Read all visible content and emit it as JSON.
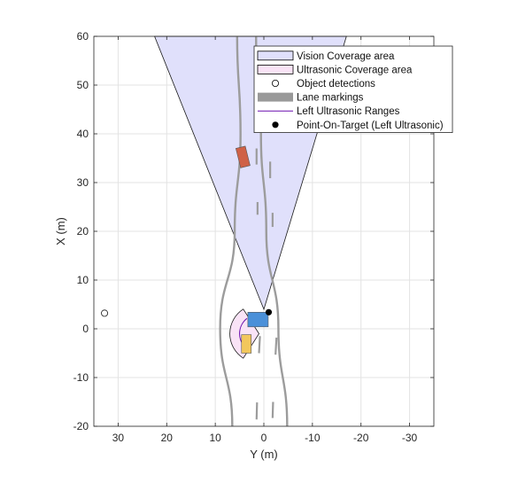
{
  "chart_data": {
    "type": "scatter",
    "title": "",
    "xlabel": "Y (m)",
    "ylabel": "X (m)",
    "xlim": [
      35,
      -35
    ],
    "ylim": [
      -20,
      60
    ],
    "x_reversed": true,
    "x_ticks": [
      30,
      20,
      10,
      0,
      -10,
      -20,
      -30
    ],
    "x_tick_labels": [
      "30",
      "20",
      "10",
      "0",
      "-10",
      "-20",
      "-30"
    ],
    "y_ticks": [
      -20,
      -10,
      0,
      10,
      20,
      30,
      40,
      50,
      60
    ],
    "y_tick_labels": [
      "-20",
      "-10",
      "0",
      "10",
      "20",
      "30",
      "40",
      "50",
      "60"
    ],
    "grid": true,
    "legend_position": "top-right",
    "legend": [
      {
        "label": "Vision Coverage area",
        "kind": "patch",
        "color": "#e0e0fb",
        "edge": "#000000"
      },
      {
        "label": "Ultrasonic Coverage area",
        "kind": "patch",
        "color": "#f9e3f6",
        "edge": "#000000"
      },
      {
        "label": "Object detections",
        "kind": "open-circle",
        "color": "#000000"
      },
      {
        "label": "Lane markings",
        "kind": "thick-line",
        "color": "#999999"
      },
      {
        "label": "Left Ultrasonic Ranges",
        "kind": "line",
        "color": "#6a0dad"
      },
      {
        "label": "Point-On-Target (Left Ultrasonic)",
        "kind": "filled-circle",
        "color": "#000000"
      }
    ],
    "vision_coverage": {
      "apex": [
        0,
        4
      ],
      "polygon": [
        [
          0,
          4
        ],
        [
          22.5,
          60
        ],
        [
          -17,
          60
        ]
      ],
      "color": "#e0e0fb"
    },
    "ultrasonic_coverage": {
      "center": [
        1,
        -1
      ],
      "radius": 6,
      "color": "#f9e3f6"
    },
    "left_ultrasonic_arc": {
      "center": [
        1,
        -1
      ],
      "radius": 4,
      "color": "#6a0dad"
    },
    "lane_solid": [
      {
        "points": [
          [
            6.5,
            -20
          ],
          [
            9,
            0
          ],
          [
            6,
            20
          ],
          [
            4.8,
            40
          ],
          [
            5.5,
            60
          ]
        ]
      },
      {
        "points": [
          [
            -4.8,
            -20
          ],
          [
            -3,
            0
          ],
          [
            -0.5,
            20
          ],
          [
            0.6,
            40
          ],
          [
            1.6,
            60
          ]
        ]
      }
    ],
    "lane_dashed": [
      {
        "segments": [
          [
            [
              1.5,
              -18.6
            ],
            [
              1.4,
              -15.1
            ]
          ],
          [
            [
              1.0,
              -5.0
            ],
            [
              0.8,
              -1.5
            ]
          ],
          [
            [
              1.3,
              23.4
            ],
            [
              1.3,
              26.0
            ]
          ],
          [
            [
              1.5,
              33.7
            ],
            [
              1.5,
              37.0
            ]
          ]
        ]
      },
      {
        "segments": [
          [
            [
              -1.8,
              -18.3
            ],
            [
              -1.9,
              -15.0
            ]
          ],
          [
            [
              -2.4,
              -5.3
            ],
            [
              -2.6,
              -1.8
            ]
          ],
          [
            [
              -1.8,
              20.9
            ],
            [
              -1.8,
              23.8
            ]
          ],
          [
            [
              -1.3,
              30.9
            ],
            [
              -1.3,
              34.3
            ]
          ]
        ]
      }
    ],
    "vehicles": [
      {
        "label": "ego",
        "color": "#4a90d9",
        "x": [
          0.4,
          3.4
        ],
        "y": [
          -0.9,
          3.3
        ]
      },
      {
        "label": "left-car",
        "color": "#f2c75c",
        "x": [
          -5,
          -1.2
        ],
        "y": [
          2.6,
          4.6
        ]
      },
      {
        "label": "front-car",
        "color": "#cf6147",
        "x": [
          33.2,
          37.3
        ],
        "y": [
          3.3,
          5.3
        ],
        "rotated": true
      }
    ],
    "object_detections": [
      {
        "x": 3.2,
        "y": 32.8
      }
    ],
    "point_on_target": [
      {
        "x": 3.4,
        "y": -1.0
      }
    ]
  }
}
